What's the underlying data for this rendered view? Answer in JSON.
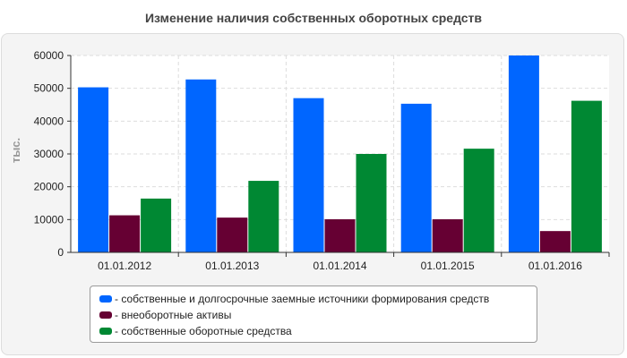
{
  "chart_data": {
    "type": "bar",
    "title": "Изменение наличия собственных оборотных средств",
    "ylabel": "тыс.",
    "xlabel": "",
    "ylim": [
      0,
      60000
    ],
    "yticks": [
      "0",
      "10000",
      "20000",
      "30000",
      "40000",
      "50000",
      "60000"
    ],
    "grid": true,
    "legend_position": "bottom",
    "categories": [
      "01.01.2012",
      "01.01.2013",
      "01.01.2014",
      "01.01.2015",
      "01.01.2016"
    ],
    "series": [
      {
        "name": "- собственные и долгосрочные заемные источники формирования средств",
        "color": "#0066ff",
        "values": [
          50300,
          52700,
          47000,
          45300,
          60000
        ]
      },
      {
        "name": "- внеоборотные активы",
        "color": "#660033",
        "values": [
          11300,
          10600,
          10100,
          10100,
          6500
        ]
      },
      {
        "name": "- собственные оборотные средства",
        "color": "#008833",
        "values": [
          16400,
          21800,
          30000,
          31600,
          46200
        ]
      }
    ]
  }
}
